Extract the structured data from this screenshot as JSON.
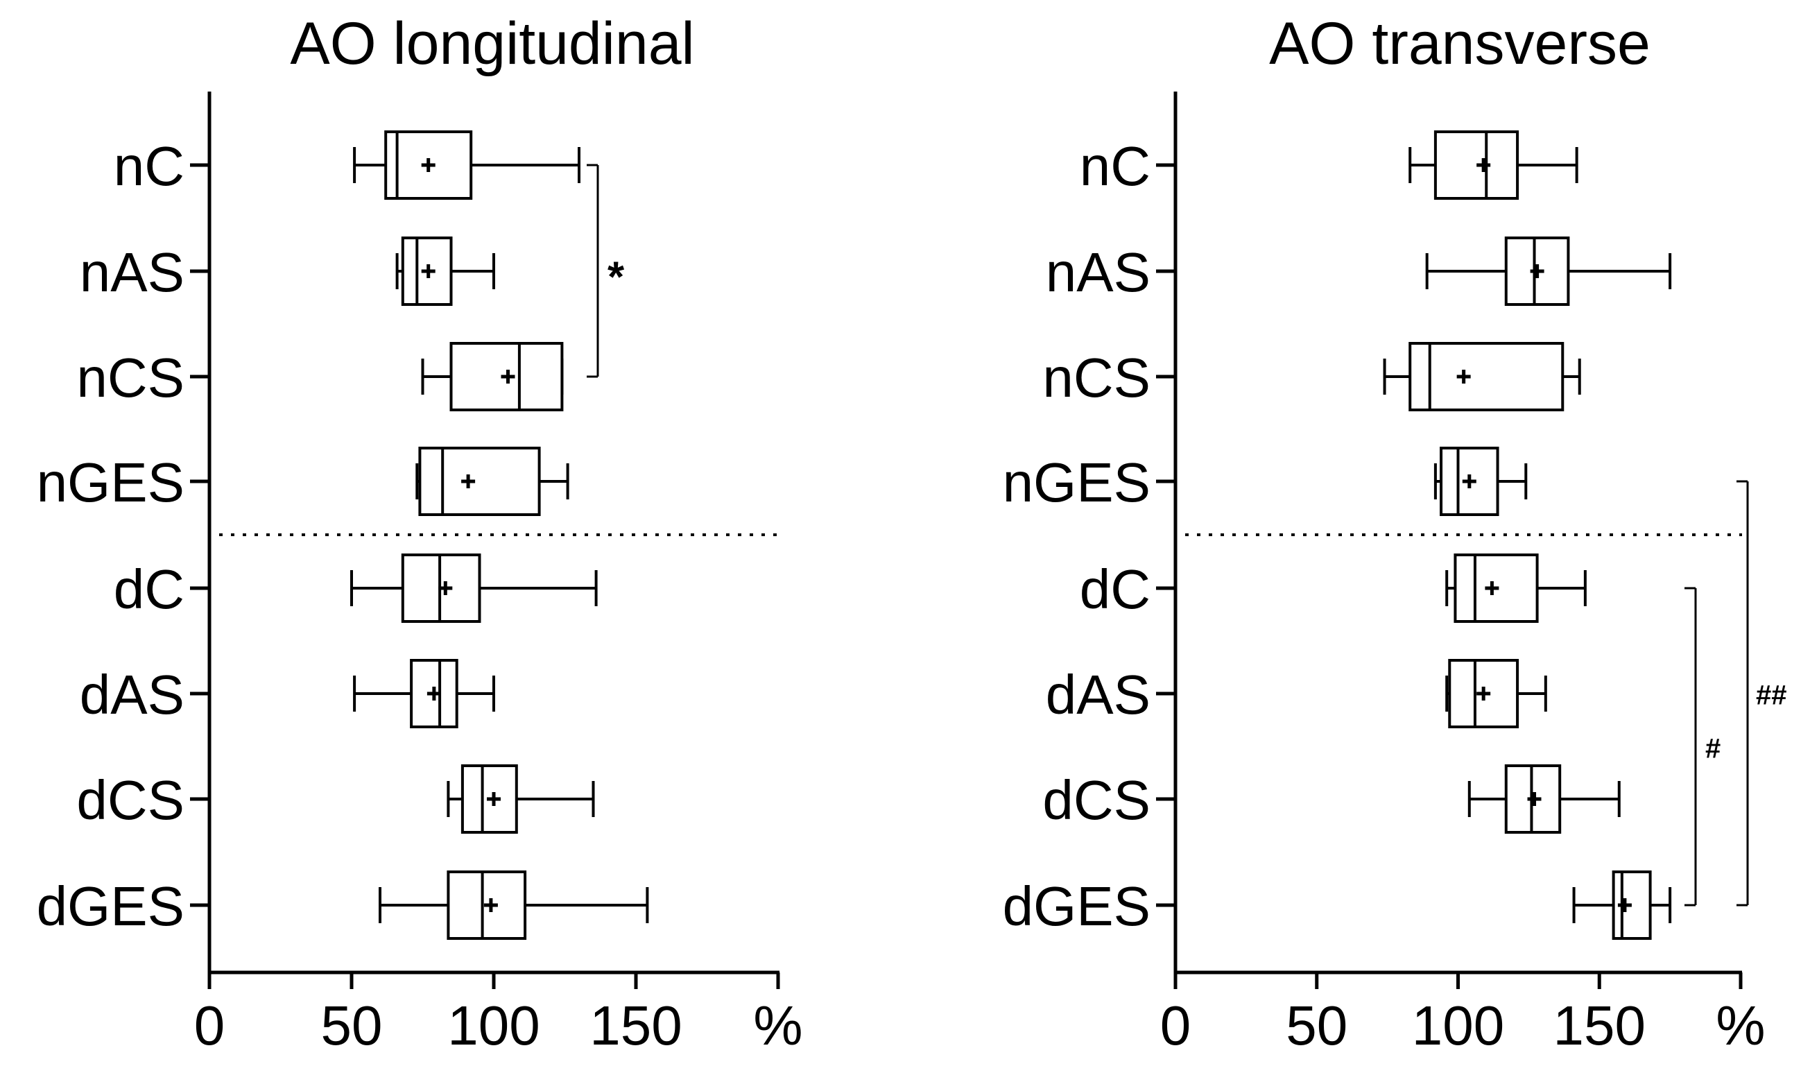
{
  "chart_data": [
    {
      "type": "boxplot",
      "orientation": "horizontal",
      "title": "AO longitudinal",
      "xlabel": "%",
      "xlim": [
        0,
        200
      ],
      "xticks": [
        "0",
        "50",
        "100",
        "150",
        "%"
      ],
      "categories": [
        "nC",
        "nAS",
        "nCS",
        "nGES",
        "dC",
        "dAS",
        "dCS",
        "dGES"
      ],
      "separator_after": "nGES",
      "boxes": [
        {
          "label": "nC",
          "min": 51,
          "q1": 62,
          "median": 66,
          "q3": 92,
          "max": 130,
          "mean": 77
        },
        {
          "label": "nAS",
          "min": 66,
          "q1": 68,
          "median": 73,
          "q3": 85,
          "max": 100,
          "mean": 77
        },
        {
          "label": "nCS",
          "min": 75,
          "q1": 85,
          "median": 109,
          "q3": 124,
          "max": 124,
          "mean": 105
        },
        {
          "label": "nGES",
          "min": 73,
          "q1": 74,
          "median": 82,
          "q3": 116,
          "max": 126,
          "mean": 91
        },
        {
          "label": "dC",
          "min": 50,
          "q1": 68,
          "median": 81,
          "q3": 95,
          "max": 136,
          "mean": 83
        },
        {
          "label": "dAS",
          "min": 51,
          "q1": 71,
          "median": 81,
          "q3": 87,
          "max": 100,
          "mean": 79
        },
        {
          "label": "dCS",
          "min": 84,
          "q1": 89,
          "median": 96,
          "q3": 108,
          "max": 135,
          "mean": 100
        },
        {
          "label": "dGES",
          "min": 60,
          "q1": 84,
          "median": 96,
          "q3": 111,
          "max": 154,
          "mean": 99
        }
      ],
      "significance": [
        {
          "from": "nC",
          "to": "nCS",
          "label": "*"
        }
      ]
    },
    {
      "type": "boxplot",
      "orientation": "horizontal",
      "title": "AO transverse",
      "xlabel": "%",
      "xlim": [
        0,
        200
      ],
      "xticks": [
        "0",
        "50",
        "100",
        "150",
        "%"
      ],
      "categories": [
        "nC",
        "nAS",
        "nCS",
        "nGES",
        "dC",
        "dAS",
        "dCS",
        "dGES"
      ],
      "separator_after": "nGES",
      "boxes": [
        {
          "label": "nC",
          "min": 83,
          "q1": 92,
          "median": 110,
          "q3": 121,
          "max": 142,
          "mean": 109
        },
        {
          "label": "nAS",
          "min": 89,
          "q1": 117,
          "median": 127,
          "q3": 139,
          "max": 175,
          "mean": 128
        },
        {
          "label": "nCS",
          "min": 74,
          "q1": 83,
          "median": 90,
          "q3": 137,
          "max": 143,
          "mean": 102
        },
        {
          "label": "nGES",
          "min": 92,
          "q1": 94,
          "median": 100,
          "q3": 114,
          "max": 124,
          "mean": 104
        },
        {
          "label": "dC",
          "min": 96,
          "q1": 99,
          "median": 106,
          "q3": 128,
          "max": 145,
          "mean": 112
        },
        {
          "label": "dAS",
          "min": 96,
          "q1": 97,
          "median": 106,
          "q3": 121,
          "max": 131,
          "mean": 109
        },
        {
          "label": "dCS",
          "min": 104,
          "q1": 117,
          "median": 126,
          "q3": 136,
          "max": 157,
          "mean": 127
        },
        {
          "label": "dGES",
          "min": 141,
          "q1": 155,
          "median": 158,
          "q3": 168,
          "max": 175,
          "mean": 159
        }
      ],
      "significance": [
        {
          "from": "dC",
          "to": "dGES",
          "label": "#"
        },
        {
          "from": "nGES",
          "to": "dGES",
          "label": "##"
        }
      ]
    }
  ]
}
